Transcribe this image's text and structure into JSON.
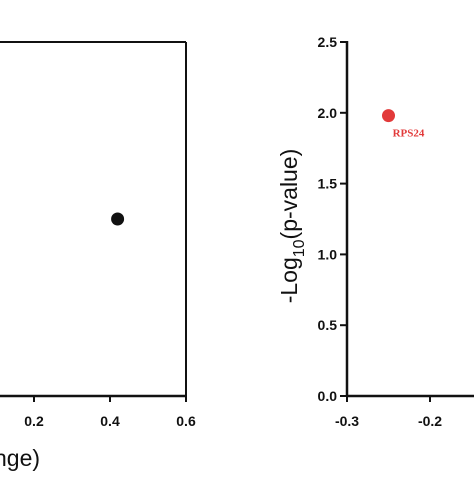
{
  "colors": {
    "axis": "#111111",
    "point_default": "#111111",
    "point_highlight": "#e23a3a"
  },
  "chart_data": [
    {
      "type": "scatter",
      "title": "",
      "xlabel_visible": "nge)",
      "ylabel": "",
      "xlim": [
        -0.1,
        0.6
      ],
      "ylim": [
        0,
        2.5
      ],
      "x_ticks": [
        {
          "value": 0.2,
          "label": "0.2"
        },
        {
          "value": 0.4,
          "label": "0.4"
        },
        {
          "value": 0.6,
          "label": "0.6"
        }
      ],
      "y_ticks": [],
      "grid": false,
      "points": [
        {
          "x": 0.42,
          "y": 1.25,
          "label": "",
          "color": "#111111"
        }
      ]
    },
    {
      "type": "scatter",
      "title": "",
      "xlabel": "",
      "ylabel_prefix": "-Log",
      "ylabel_subscript": "10",
      "ylabel_suffix": "(p-value)",
      "xlim": [
        -0.3,
        -0.12
      ],
      "ylim": [
        0,
        2.5
      ],
      "x_ticks": [
        {
          "value": -0.3,
          "label": "-0.3"
        },
        {
          "value": -0.2,
          "label": "-0.2"
        }
      ],
      "y_ticks": [
        {
          "value": 0.0,
          "label": "0.0"
        },
        {
          "value": 0.5,
          "label": "0.5"
        },
        {
          "value": 1.0,
          "label": "1.0"
        },
        {
          "value": 1.5,
          "label": "1.5"
        },
        {
          "value": 2.0,
          "label": "2.0"
        },
        {
          "value": 2.5,
          "label": "2.5"
        }
      ],
      "grid": false,
      "points": [
        {
          "x": -0.25,
          "y": 1.98,
          "label": "RPS24",
          "color": "#e23a3a"
        }
      ]
    }
  ]
}
